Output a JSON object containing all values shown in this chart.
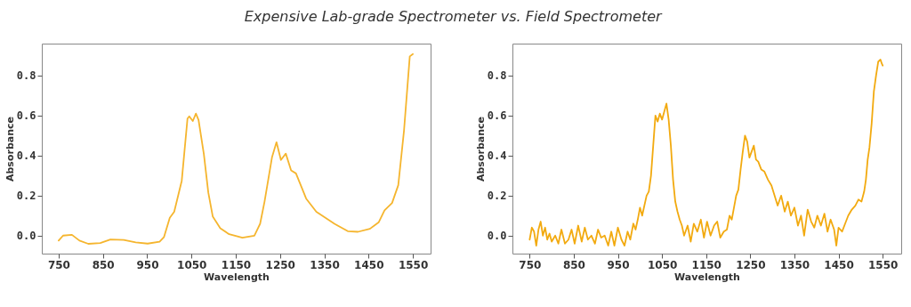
{
  "chart_data": [
    {
      "type": "line",
      "title": "Expensive Lab-grade Spectrometer vs. Field Spectrometer",
      "xlabel": "Wavelength",
      "ylabel": "Absorbance",
      "xlim": [
        712,
        1590
      ],
      "ylim": [
        -0.09,
        0.96
      ],
      "xticks": [
        750,
        850,
        950,
        1050,
        1150,
        1250,
        1350,
        1450,
        1550
      ],
      "yticks": [
        {
          "value": 0,
          "label": "0.0"
        },
        {
          "value": 0.2,
          "label": "0.2"
        },
        {
          "value": 0.4,
          "label": "0.4"
        },
        {
          "value": 0.6,
          "label": "0.6"
        },
        {
          "value": 0.8,
          "label": "0.8"
        }
      ],
      "grid": false,
      "legend": false,
      "series": [
        {
          "color": "#f5b52e",
          "x": [
            750,
            760,
            780,
            797,
            817,
            844,
            867,
            897,
            924,
            951,
            978,
            988,
            1001,
            1011,
            1028,
            1041,
            1045,
            1053,
            1060,
            1066,
            1078,
            1088,
            1098,
            1115,
            1135,
            1165,
            1192,
            1205,
            1215,
            1232,
            1242,
            1252,
            1263,
            1275,
            1286,
            1309,
            1332,
            1373,
            1403,
            1426,
            1453,
            1473,
            1486,
            1503,
            1517,
            1530,
            1543,
            1550
          ],
          "values": [
            -0.025,
            0,
            0.004,
            -0.025,
            -0.041,
            -0.037,
            -0.019,
            -0.022,
            -0.034,
            -0.04,
            -0.03,
            -0.007,
            0.089,
            0.119,
            0.274,
            0.585,
            0.596,
            0.573,
            0.61,
            0.578,
            0.407,
            0.215,
            0.096,
            0.037,
            0.007,
            -0.01,
            0,
            0.059,
            0.17,
            0.393,
            0.467,
            0.378,
            0.41,
            0.326,
            0.311,
            0.185,
            0.119,
            0.059,
            0.022,
            0.019,
            0.034,
            0.067,
            0.126,
            0.163,
            0.252,
            0.526,
            0.896,
            0.908
          ]
        }
      ]
    },
    {
      "type": "line",
      "xlabel": "Wavelength",
      "ylabel": "Absorbance",
      "xlim": [
        711,
        1592
      ],
      "ylim": [
        -0.09,
        0.96
      ],
      "xticks": [
        750,
        850,
        950,
        1050,
        1150,
        1250,
        1350,
        1450,
        1550
      ],
      "yticks": [
        {
          "value": 0,
          "label": "0.0"
        },
        {
          "value": 0.2,
          "label": "0.2"
        },
        {
          "value": 0.4,
          "label": "0.4"
        },
        {
          "value": 0.6,
          "label": "0.6"
        },
        {
          "value": 0.8,
          "label": "0.8"
        }
      ],
      "grid": false,
      "legend": false,
      "series": [
        {
          "color": "#f2aa10",
          "x": [
            750,
            755,
            760,
            765,
            770,
            775,
            780,
            785,
            790,
            795,
            800,
            808,
            815,
            822,
            830,
            838,
            845,
            852,
            860,
            868,
            875,
            882,
            890,
            898,
            905,
            912,
            920,
            928,
            935,
            942,
            950,
            958,
            965,
            972,
            978,
            985,
            990,
            995,
            1000,
            1005,
            1010,
            1015,
            1020,
            1025,
            1030,
            1035,
            1040,
            1045,
            1050,
            1055,
            1060,
            1065,
            1070,
            1075,
            1080,
            1085,
            1090,
            1095,
            1100,
            1108,
            1115,
            1122,
            1130,
            1138,
            1145,
            1152,
            1160,
            1168,
            1175,
            1182,
            1190,
            1197,
            1203,
            1208,
            1213,
            1218,
            1223,
            1228,
            1233,
            1238,
            1243,
            1248,
            1253,
            1258,
            1263,
            1268,
            1275,
            1282,
            1290,
            1298,
            1305,
            1312,
            1320,
            1328,
            1335,
            1342,
            1350,
            1358,
            1365,
            1372,
            1380,
            1388,
            1395,
            1402,
            1410,
            1418,
            1425,
            1432,
            1440,
            1445,
            1450,
            1458,
            1465,
            1472,
            1480,
            1488,
            1495,
            1502,
            1508,
            1512,
            1516,
            1520,
            1525,
            1530,
            1535,
            1540,
            1545,
            1548,
            1550
          ],
          "values": [
            -0.02,
            0.04,
            0.02,
            -0.05,
            0.03,
            0.07,
            0.0,
            0.04,
            -0.02,
            0.01,
            -0.03,
            0.0,
            -0.04,
            0.03,
            -0.04,
            -0.02,
            0.03,
            -0.04,
            0.05,
            -0.03,
            0.04,
            -0.02,
            0.0,
            -0.04,
            0.03,
            -0.01,
            0.0,
            -0.05,
            0.02,
            -0.05,
            0.04,
            -0.02,
            -0.05,
            0.02,
            -0.02,
            0.06,
            0.03,
            0.08,
            0.14,
            0.1,
            0.15,
            0.2,
            0.22,
            0.3,
            0.45,
            0.6,
            0.57,
            0.61,
            0.58,
            0.62,
            0.66,
            0.58,
            0.45,
            0.28,
            0.17,
            0.12,
            0.08,
            0.05,
            0.0,
            0.05,
            -0.03,
            0.06,
            0.02,
            0.08,
            -0.01,
            0.07,
            0.0,
            0.05,
            0.07,
            -0.01,
            0.02,
            0.03,
            0.1,
            0.08,
            0.14,
            0.2,
            0.23,
            0.33,
            0.42,
            0.5,
            0.47,
            0.39,
            0.42,
            0.45,
            0.38,
            0.37,
            0.33,
            0.32,
            0.28,
            0.25,
            0.2,
            0.15,
            0.2,
            0.12,
            0.17,
            0.1,
            0.14,
            0.05,
            0.1,
            0.0,
            0.13,
            0.07,
            0.04,
            0.1,
            0.05,
            0.11,
            0.02,
            0.08,
            0.03,
            -0.05,
            0.04,
            0.02,
            0.06,
            0.1,
            0.13,
            0.15,
            0.18,
            0.17,
            0.22,
            0.28,
            0.38,
            0.44,
            0.56,
            0.72,
            0.8,
            0.87,
            0.88,
            0.86,
            0.85
          ]
        }
      ]
    }
  ]
}
